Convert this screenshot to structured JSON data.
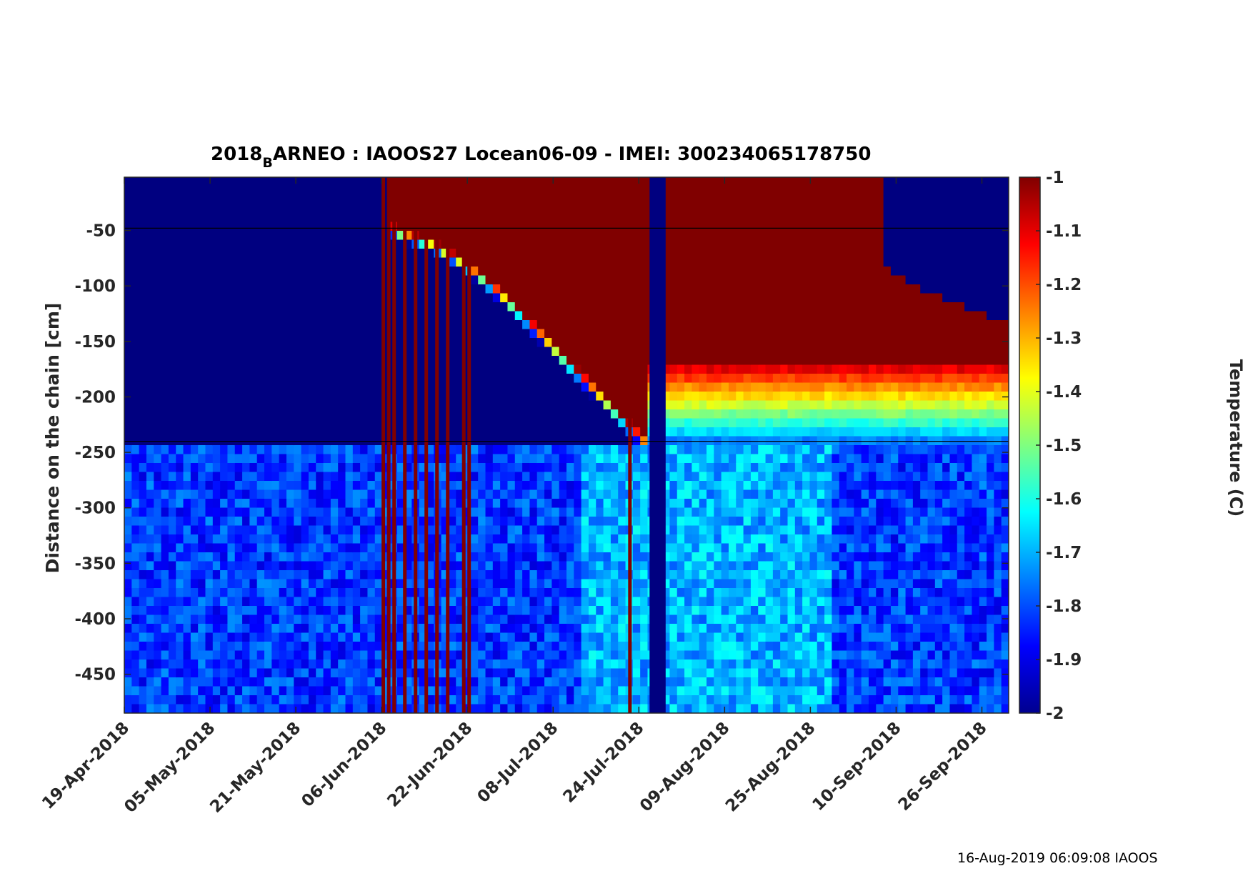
{
  "chart_data": {
    "type": "heatmap",
    "title_parts": [
      "2018",
      "B",
      "ARNEO : IAOOS27  Locean06-09 - IMEI: 300234065178750"
    ],
    "ylabel": "Distance on the chain [cm]",
    "colorbar_label": "Temperature (C)",
    "colormap": "jet",
    "clim": [
      -2,
      -1
    ],
    "colorbar_ticks": [
      "-1",
      "-1.1",
      "-1.2",
      "-1.3",
      "-1.4",
      "-1.5",
      "-1.6",
      "-1.7",
      "-1.8",
      "-1.9",
      "-2"
    ],
    "colorbar_tick_values": [
      -1,
      -1.1,
      -1.2,
      -1.3,
      -1.4,
      -1.5,
      -1.6,
      -1.7,
      -1.8,
      -1.9,
      -2
    ],
    "ylim": [
      -485,
      -2
    ],
    "y_ticks": [
      "-50",
      "-100",
      "-150",
      "-200",
      "-250",
      "-300",
      "-350",
      "-400",
      "-450"
    ],
    "y_tick_values": [
      -50,
      -100,
      -150,
      -200,
      -250,
      -300,
      -350,
      -400,
      -450
    ],
    "x_range": [
      "2018-04-19",
      "2018-10-01"
    ],
    "x_ticks": [
      "19-Apr-2018",
      "05-May-2018",
      "21-May-2018",
      "06-Jun-2018",
      "22-Jun-2018",
      "08-Jul-2018",
      "24-Jul-2018",
      "09-Aug-2018",
      "25-Aug-2018",
      "10-Sep-2018",
      "26-Sep-2018"
    ],
    "x_tick_dates": [
      "2018-04-19",
      "2018-05-05",
      "2018-05-21",
      "2018-06-06",
      "2018-06-22",
      "2018-07-08",
      "2018-07-24",
      "2018-08-09",
      "2018-08-25",
      "2018-09-10",
      "2018-09-26"
    ],
    "reference_lines_y": [
      -48,
      -240
    ],
    "snow_ice_boundary": {
      "dates": [
        "2018-06-07",
        "2018-06-10",
        "2018-06-15",
        "2018-06-20",
        "2018-06-25",
        "2018-06-30",
        "2018-07-05",
        "2018-07-10",
        "2018-07-15",
        "2018-07-20",
        "2018-07-25"
      ],
      "distance": [
        -50,
        -58,
        -66,
        -80,
        -98,
        -120,
        -145,
        -170,
        -195,
        -220,
        -245
      ]
    },
    "upper_cold_region": {
      "dates": [
        "2018-09-08",
        "2018-09-12",
        "2018-09-16",
        "2018-09-20",
        "2018-09-24",
        "2018-09-28",
        "2018-10-01"
      ],
      "distance": [
        -85,
        -95,
        -105,
        -112,
        -120,
        -128,
        -130
      ]
    },
    "warm_artifact_dates": [
      "2018-06-06",
      "2018-06-07",
      "2018-06-08",
      "2018-06-10",
      "2018-06-12",
      "2018-06-14",
      "2018-06-16",
      "2018-06-18",
      "2018-06-21",
      "2018-06-22",
      "2018-07-22"
    ],
    "cold_gap_dates": [
      "2018-07-26",
      "2018-07-29"
    ],
    "footer": "16-Aug-2019 06:09:08 IAOOS"
  }
}
